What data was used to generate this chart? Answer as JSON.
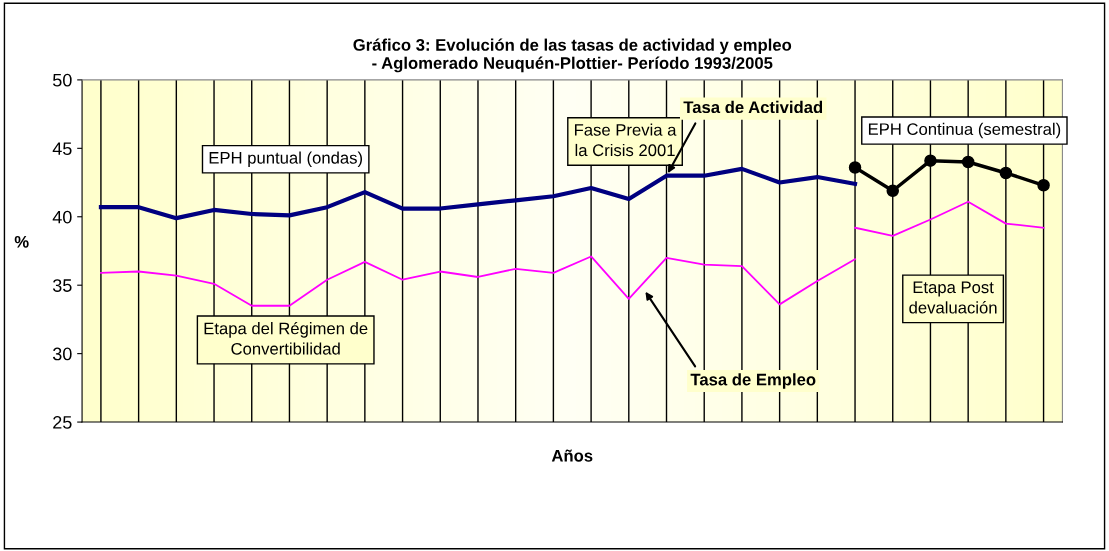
{
  "chart_data": {
    "type": "line",
    "title": "Gráfico 3: Evolución de las tasas de actividad y empleo\n- Aglomerado Neuquén-Plottier- Período 1993/2005",
    "xlabel": "Años",
    "ylabel": "%",
    "categories": [
      null,
      null,
      null,
      null,
      null,
      null,
      null,
      null,
      null,
      null,
      null,
      null,
      null,
      null,
      null,
      null,
      null,
      null,
      null,
      null,
      null,
      null,
      null,
      null,
      null,
      null
    ],
    "series": [
      {
        "color": "#000080",
        "values": [
          40.7,
          40.7,
          39.9,
          40.5,
          40.2,
          40.1,
          40.7,
          41.8,
          40.6,
          40.6,
          40.9,
          41.2,
          41.5,
          42.1,
          41.3,
          43.0,
          43.0,
          43.5,
          42.5,
          42.9,
          42.4,
          null,
          null,
          null,
          null,
          null
        ]
      },
      {
        "color": "#000000",
        "marker": "circle",
        "values": [
          null,
          null,
          null,
          null,
          null,
          null,
          null,
          null,
          null,
          null,
          null,
          null,
          null,
          null,
          null,
          null,
          null,
          null,
          null,
          null,
          43.6,
          41.9,
          44.1,
          44.0,
          43.2,
          42.3
        ]
      },
      {
        "color": "#ff00ff",
        "values": [
          35.9,
          36.0,
          35.7,
          35.1,
          33.5,
          33.5,
          35.4,
          36.7,
          35.4,
          36.0,
          35.6,
          36.2,
          35.9,
          37.1,
          34.0,
          37.0,
          36.5,
          36.4,
          33.6,
          35.3,
          36.9,
          null,
          null,
          null,
          null,
          null
        ]
      },
      {
        "color": "#ff00ff",
        "values": [
          null,
          null,
          null,
          null,
          null,
          null,
          null,
          null,
          null,
          null,
          null,
          null,
          null,
          null,
          null,
          null,
          null,
          null,
          null,
          null,
          39.2,
          38.6,
          39.8,
          41.1,
          39.5,
          39.2
        ]
      }
    ],
    "ylim": [
      25,
      50
    ],
    "yticks": [
      25,
      30,
      35,
      40,
      45,
      50
    ],
    "grid": "x",
    "legend": false,
    "annotations": [
      "EPH puntual (ondas)",
      "Fase Previa a\nla Crisis 2001",
      "Tasa de Actividad",
      "EPH Continua (semestral)",
      "Etapa del Régimen de\nConvertibilidad",
      "Tasa de Empleo",
      "Etapa Post\ndevaluación"
    ]
  }
}
